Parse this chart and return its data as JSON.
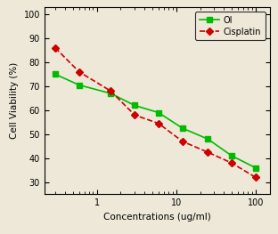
{
  "OI_x": [
    0.3,
    0.6,
    1.5,
    3,
    6,
    12,
    25,
    50,
    100
  ],
  "OI_y": [
    75,
    70.5,
    67,
    62,
    59,
    52.5,
    48,
    41,
    36
  ],
  "Cisplatin_x": [
    0.3,
    0.6,
    1.5,
    3,
    6,
    12,
    25,
    50,
    100
  ],
  "Cisplatin_y": [
    86,
    76,
    68,
    58,
    54.5,
    47,
    42.5,
    38,
    32
  ],
  "xlabel": "Concentrations (ug/ml)",
  "ylabel": "Cell Viability (%)",
  "xlim": [
    0.22,
    150
  ],
  "ylim": [
    25,
    103
  ],
  "yticks": [
    30,
    40,
    50,
    60,
    70,
    80,
    90,
    100
  ],
  "xtick_positions": [
    1,
    10,
    100
  ],
  "xtick_labels": [
    "1",
    "10",
    "100"
  ],
  "legend_OI": "OI",
  "legend_Cisplatin": "Cisplatin",
  "OI_color": "#00bb00",
  "Cisplatin_color": "#cc0000",
  "bg_color": "#ede8d8",
  "figsize": [
    3.12,
    2.63
  ],
  "dpi": 100
}
